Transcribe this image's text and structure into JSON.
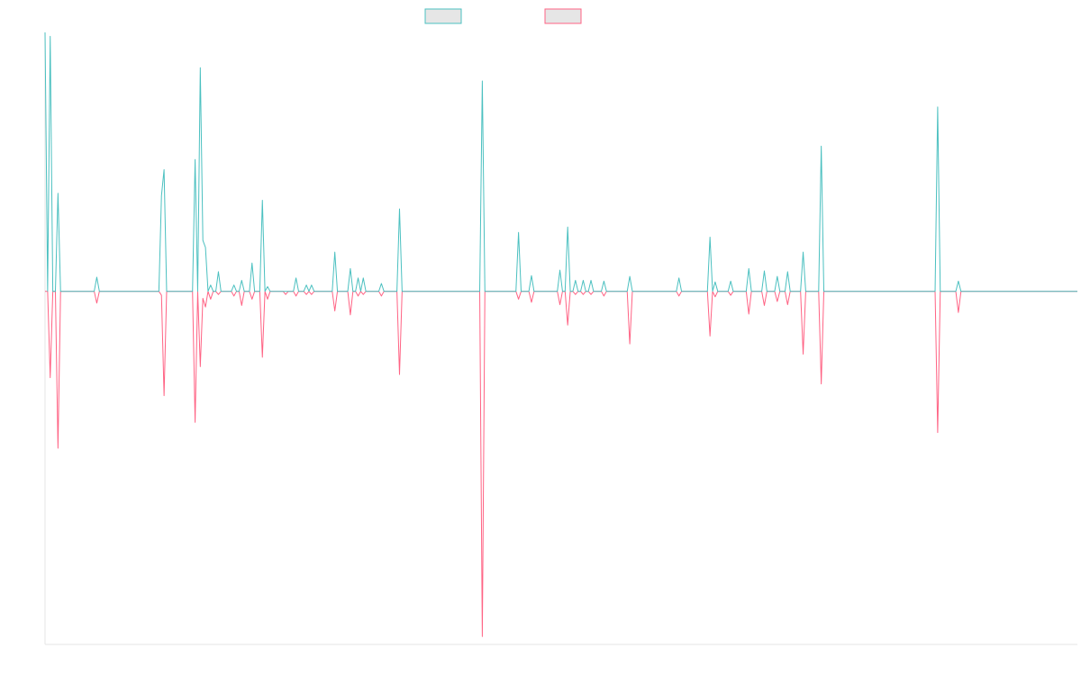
{
  "chart_data": {
    "type": "line",
    "title": "",
    "xlabel": "",
    "ylabel": "",
    "ylim": [
      -45,
      33
    ],
    "grid": false,
    "legend_position": "top-center",
    "colors": {
      "positive": "#4bc0c0",
      "negative": "#ff6384",
      "axis": "#e6e6e6",
      "legend_fill": "#e6e6e6"
    },
    "series": [
      {
        "values": [
          33,
          0,
          32.5,
          0,
          0,
          12.5,
          0,
          0,
          0,
          0,
          0,
          0,
          0,
          0,
          0,
          0,
          0,
          0,
          0,
          0,
          1.8,
          0,
          0,
          0,
          0,
          0,
          0,
          0,
          0,
          0,
          0,
          0,
          0,
          0,
          0,
          0,
          0,
          0,
          0,
          0,
          0,
          0,
          0,
          0,
          0,
          12.2,
          15.5,
          0,
          0,
          0,
          0,
          0,
          0,
          0,
          0,
          0,
          0,
          0,
          16.8,
          0,
          28.5,
          6.5,
          5.6,
          0,
          0.8,
          0,
          0,
          2.5,
          0,
          0,
          0,
          0,
          0,
          0.8,
          0,
          0,
          1.4,
          0,
          0,
          0,
          3.6,
          0,
          0,
          0,
          11.6,
          0,
          0.6,
          0,
          0,
          0,
          0,
          0,
          0,
          0,
          0,
          0,
          0,
          1.7,
          0,
          0,
          0,
          0.8,
          0,
          0.8,
          0,
          0,
          0,
          0,
          0,
          0,
          0,
          0,
          5,
          0,
          0,
          0,
          0,
          0,
          2.9,
          0,
          0,
          1.7,
          0,
          1.7,
          0,
          0,
          0,
          0,
          0,
          0,
          1,
          0,
          0,
          0,
          0,
          0,
          0,
          10.5,
          0,
          0,
          0,
          0,
          0,
          0,
          0,
          0,
          0,
          0,
          0,
          0,
          0,
          0,
          0,
          0,
          0,
          0,
          0,
          0,
          0,
          0,
          0,
          0,
          0,
          0,
          0,
          0,
          0,
          0,
          0,
          26.8,
          0,
          0,
          0,
          0,
          0,
          0,
          0,
          0,
          0,
          0,
          0,
          0,
          0,
          7.5,
          0,
          0,
          0,
          0,
          2,
          0,
          0,
          0,
          0,
          0,
          0,
          0,
          0,
          0,
          0,
          2.7,
          0,
          0,
          8.2,
          0,
          0,
          1.4,
          0,
          0,
          1.4,
          0,
          0,
          1.4,
          0,
          0,
          0,
          0,
          1.3,
          0,
          0,
          0,
          0,
          0,
          0,
          0,
          0,
          0,
          1.9,
          0,
          0,
          0,
          0,
          0,
          0,
          0,
          0,
          0,
          0,
          0,
          0,
          0,
          0,
          0,
          0,
          0,
          0,
          1.7,
          0,
          0,
          0,
          0,
          0,
          0,
          0,
          0,
          0,
          0,
          0,
          6.9,
          0,
          1.2,
          0,
          0,
          0,
          0,
          0,
          1.3,
          0,
          0,
          0,
          0,
          0,
          0,
          2.9,
          0,
          0,
          0,
          0,
          0,
          2.6,
          0,
          0,
          0,
          0,
          1.9,
          0,
          0,
          0,
          2.5,
          0,
          0,
          0,
          0,
          0,
          5,
          0,
          0,
          0,
          0,
          0,
          0,
          18.5,
          0,
          0,
          0,
          0,
          0,
          0,
          0,
          0,
          0,
          0,
          0,
          0,
          0,
          0,
          0,
          0,
          0,
          0,
          0,
          0,
          0,
          0,
          0,
          0,
          0,
          0,
          0,
          0,
          0,
          0,
          0,
          0,
          0,
          0,
          0,
          0,
          0,
          0,
          0,
          0,
          0,
          0,
          0,
          0,
          23.5,
          0,
          0,
          0,
          0,
          0,
          0,
          0,
          1.3,
          0,
          0,
          0,
          0,
          0,
          0,
          0,
          0,
          0,
          0,
          0,
          0,
          0,
          0,
          0,
          0,
          0,
          0,
          0,
          0,
          0,
          0,
          0,
          0,
          0,
          0,
          0,
          0,
          0,
          0,
          0,
          0,
          0,
          0,
          0,
          0,
          0,
          0,
          0,
          0,
          0,
          0,
          0,
          0,
          0,
          0
        ],
        "mirror": [
          0,
          0,
          -11,
          0,
          0,
          -20,
          0,
          0,
          0,
          0,
          0,
          0,
          0,
          0,
          0,
          0,
          0,
          0,
          0,
          0,
          -1.5,
          0,
          0,
          0,
          0,
          0,
          0,
          0,
          0,
          0,
          0,
          0,
          0,
          0,
          0,
          0,
          0,
          0,
          0,
          0,
          0,
          0,
          0,
          0,
          0,
          -0.5,
          -13.3,
          0,
          0,
          0,
          0,
          0,
          0,
          0,
          0,
          0,
          0,
          0,
          -16.7,
          0,
          -9.6,
          -0.9,
          -2,
          0,
          -1,
          0,
          0,
          -0.4,
          0,
          0,
          0,
          0,
          0,
          -0.6,
          0,
          0,
          -1.8,
          0,
          0,
          0,
          -1,
          0,
          0,
          0,
          -8.4,
          0,
          -1,
          0,
          0,
          0,
          0,
          0,
          0,
          -0.4,
          0,
          0,
          0,
          -0.6,
          0,
          0,
          0,
          -0.4,
          0,
          -0.4,
          0,
          0,
          0,
          0,
          0,
          0,
          0,
          0,
          -2.5,
          0,
          0,
          0,
          0,
          0,
          -3,
          0,
          0,
          -0.6,
          0,
          -0.4,
          0,
          0,
          0,
          0,
          0,
          0,
          -0.6,
          0,
          0,
          0,
          0,
          0,
          0,
          -10.6,
          0,
          0,
          0,
          0,
          0,
          0,
          0,
          0,
          0,
          0,
          0,
          0,
          0,
          0,
          0,
          0,
          0,
          0,
          0,
          0,
          0,
          0,
          0,
          0,
          0,
          0,
          0,
          0,
          0,
          0,
          0,
          -44,
          0,
          0,
          0,
          0,
          0,
          0,
          0,
          0,
          0,
          0,
          0,
          0,
          0,
          -1,
          0,
          0,
          0,
          0,
          -1.4,
          0,
          0,
          0,
          0,
          0,
          0,
          0,
          0,
          0,
          0,
          -1.7,
          0,
          0,
          -4.3,
          0,
          0,
          -0.4,
          0,
          0,
          -0.4,
          0,
          0,
          -0.4,
          0,
          0,
          0,
          0,
          -0.6,
          0,
          0,
          0,
          0,
          0,
          0,
          0,
          0,
          0,
          -6.7,
          0,
          0,
          0,
          0,
          0,
          0,
          0,
          0,
          0,
          0,
          0,
          0,
          0,
          0,
          0,
          0,
          0,
          0,
          -0.6,
          0,
          0,
          0,
          0,
          0,
          0,
          0,
          0,
          0,
          0,
          0,
          -5.7,
          0,
          -0.7,
          0,
          0,
          0,
          0,
          0,
          -0.5,
          0,
          0,
          0,
          0,
          0,
          0,
          -2.9,
          0,
          0,
          0,
          0,
          0,
          -1.8,
          0,
          0,
          0,
          0,
          -1.3,
          0,
          0,
          0,
          -1.7,
          0,
          0,
          0,
          0,
          0,
          -8,
          0,
          0,
          0,
          0,
          0,
          0,
          -11.8,
          0,
          0,
          0,
          0,
          0,
          0,
          0,
          0,
          0,
          0,
          0,
          0,
          0,
          0,
          0,
          0,
          0,
          0,
          0,
          0,
          0,
          0,
          0,
          0,
          0,
          0,
          0,
          0,
          0,
          0,
          0,
          0,
          0,
          0,
          0,
          0,
          0,
          0,
          0,
          0,
          0,
          0,
          0,
          0,
          -18,
          0,
          0,
          0,
          0,
          0,
          0,
          0,
          -2.7,
          0,
          0,
          0,
          0,
          0,
          0,
          0,
          0,
          0,
          0,
          0,
          0,
          0,
          0,
          0,
          0,
          0,
          0,
          0,
          0,
          0,
          0,
          0,
          0,
          0,
          0,
          0,
          0,
          0,
          0,
          0,
          0,
          0,
          0,
          0,
          0,
          0,
          0,
          0,
          0,
          0,
          0,
          0,
          0,
          0,
          0
        ]
      }
    ]
  }
}
